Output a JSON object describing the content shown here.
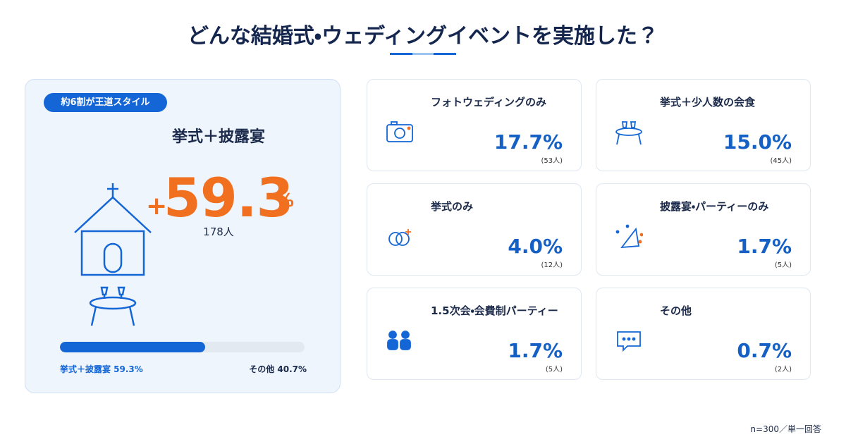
{
  "header": {
    "title": "どんな結婚式・ウェディングイベントを実施した？"
  },
  "main": {
    "badge": "約6割が王道スタイル",
    "heading": "挙式＋披露宴",
    "plus": "+",
    "percent": "59.3",
    "unit": "%",
    "count": "178人",
    "bar": {
      "share": 59.3,
      "label": "挙式＋披露宴 59.3%",
      "other_label": "その他 40.7%"
    }
  },
  "cards": [
    {
      "title": "フォトウェディングのみ",
      "percent": "17.7%",
      "count": "(53人)"
    },
    {
      "title": "挙式＋少人数の会食",
      "percent": "15.0%",
      "count": "(45人)"
    },
    {
      "title": "挙式のみ",
      "percent": "4.0%",
      "count": "(12人)"
    },
    {
      "title": "披露宴・パーティーのみ",
      "percent": "1.7%",
      "count": "(5人)"
    },
    {
      "title": "1.5次会・会費制パーティー",
      "percent": "1.7%",
      "count": "(5人)"
    },
    {
      "title": "その他",
      "percent": "0.7%",
      "count": "(2人)"
    }
  ],
  "footer": {
    "note": "n=300／単一回答"
  }
}
